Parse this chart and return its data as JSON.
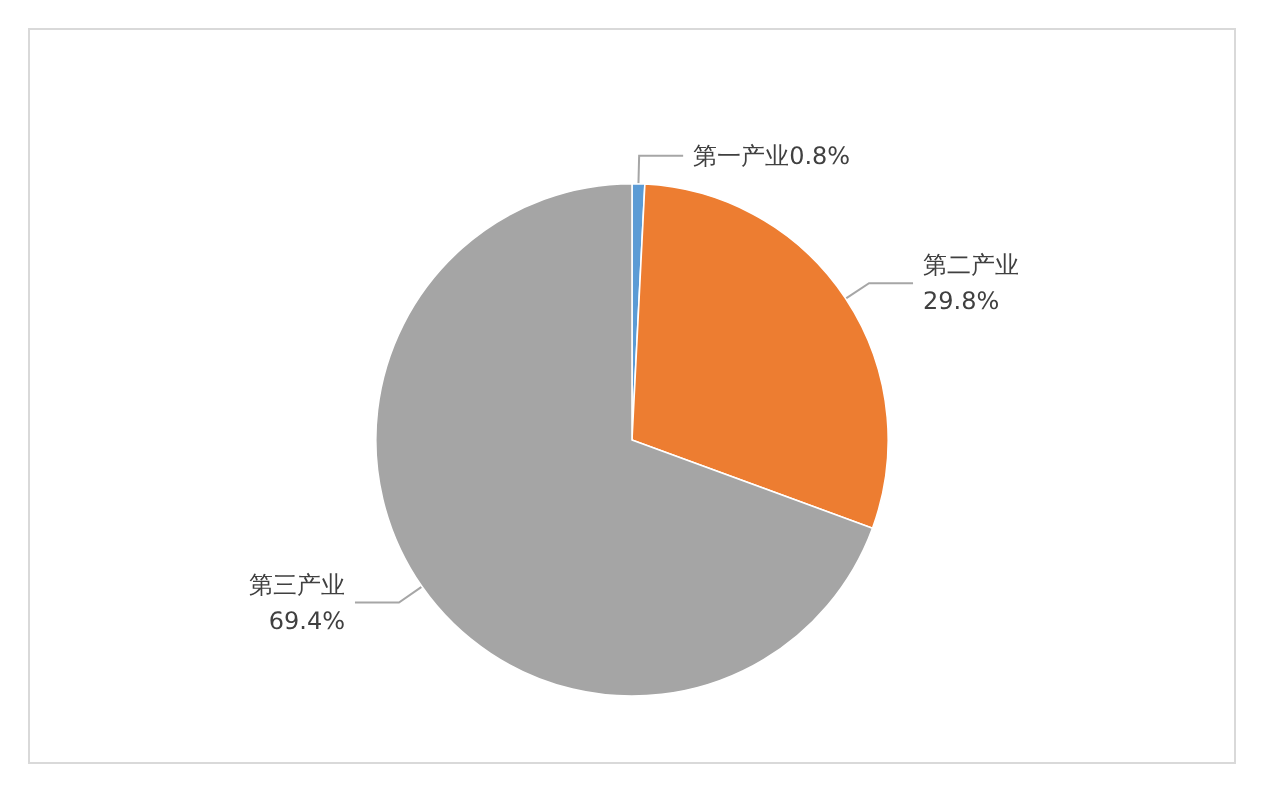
{
  "chart_data": {
    "type": "pie",
    "categories": [
      "第一产业",
      "第二产业",
      "第三产业"
    ],
    "values": [
      0.8,
      29.8,
      69.4
    ],
    "value_labels": [
      "0.8%",
      "29.8%",
      "69.4%"
    ],
    "colors": [
      "#5b9bd5",
      "#ed7d31",
      "#a5a5a5"
    ],
    "legend": false
  }
}
